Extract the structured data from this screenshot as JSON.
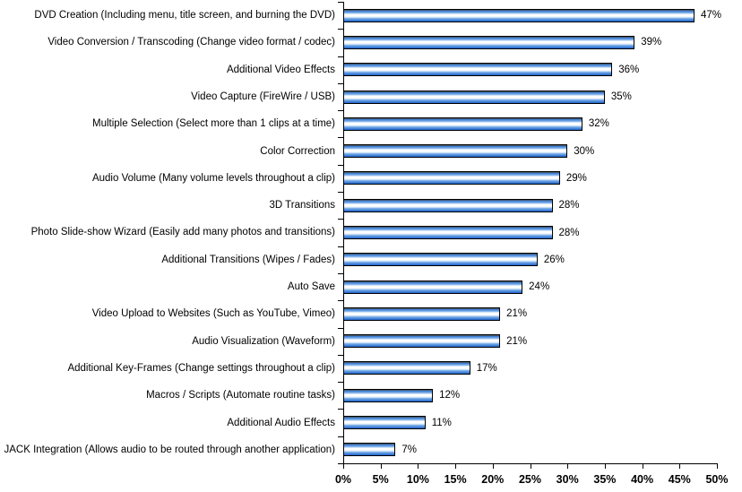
{
  "chart_data": {
    "type": "bar",
    "orientation": "horizontal",
    "title": "",
    "xlabel": "",
    "ylabel": "",
    "xlim": [
      0,
      50
    ],
    "grid": false,
    "legend": false,
    "x_tick_labels": [
      "0%",
      "5%",
      "10%",
      "15%",
      "20%",
      "25%",
      "30%",
      "35%",
      "40%",
      "45%",
      "50%"
    ],
    "x_tick_values": [
      0,
      5,
      10,
      15,
      20,
      25,
      30,
      35,
      40,
      45,
      50
    ],
    "categories": [
      "DVD Creation (Including menu, title screen, and burning the DVD)",
      "Video Conversion / Transcoding (Change video format / codec)",
      "Additional Video Effects",
      "Video Capture (FireWire / USB)",
      "Multiple Selection (Select more than 1 clips at a time)",
      "Color Correction",
      "Audio Volume (Many volume levels throughout a clip)",
      "3D Transitions",
      "Photo Slide-show Wizard (Easily add many photos and transitions)",
      "Additional Transitions (Wipes / Fades)",
      "Auto Save",
      "Video Upload to Websites (Such as YouTube, Vimeo)",
      "Audio Visualization (Waveform)",
      "Additional Key-Frames (Change settings throughout a clip)",
      "Macros / Scripts (Automate routine tasks)",
      "Additional Audio Effects",
      "JACK Integration (Allows audio to be routed through another application)"
    ],
    "values": [
      47,
      39,
      36,
      35,
      32,
      30,
      29,
      28,
      28,
      26,
      24,
      21,
      21,
      17,
      12,
      11,
      7
    ],
    "value_labels": [
      "47%",
      "39%",
      "36%",
      "35%",
      "32%",
      "30%",
      "29%",
      "28%",
      "28%",
      "26%",
      "24%",
      "21%",
      "21%",
      "17%",
      "12%",
      "11%",
      "7%"
    ]
  },
  "colors": {
    "background": "#ffffff",
    "bar_fill_main": "#3e80d4",
    "bar_fill_highlight": "#ffffff",
    "bar_border": "#000000",
    "axis": "#000000",
    "text": "#000000"
  }
}
